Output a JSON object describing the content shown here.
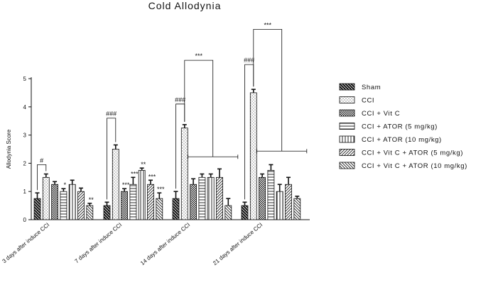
{
  "chart_data": {
    "type": "bar",
    "title": "Cold Allodynia",
    "xlabel": "",
    "ylabel": "Allodynia Score",
    "ylim": [
      0,
      5
    ],
    "yticks": [
      "0",
      "1",
      "2",
      "3",
      "4",
      "5"
    ],
    "categories": [
      "3 days after induce CCI",
      "7 days after induce CCI",
      "14 days after induce CCI",
      "21 days after induce CCI"
    ],
    "series": [
      {
        "name": "Sham",
        "pattern": "sham",
        "values": [
          0.75,
          0.5,
          0.75,
          0.5
        ],
        "errors": [
          0.2,
          0.12,
          0.25,
          0.12
        ]
      },
      {
        "name": "CCI",
        "pattern": "dots",
        "values": [
          1.5,
          2.5,
          3.25,
          4.5
        ],
        "errors": [
          0.12,
          0.15,
          0.12,
          0.12
        ]
      },
      {
        "name": "CCI + Vit C",
        "pattern": "check",
        "values": [
          1.25,
          1.0,
          1.25,
          1.5
        ],
        "errors": [
          0.1,
          0.1,
          0.2,
          0.12
        ]
      },
      {
        "name": "CCI + ATOR (5 mg/kg)",
        "pattern": "hlines",
        "values": [
          1.0,
          1.25,
          1.5,
          1.75
        ],
        "errors": [
          0.1,
          0.25,
          0.12,
          0.2
        ]
      },
      {
        "name": "CCI + ATOR (10 mg/kg)",
        "pattern": "vlines",
        "values": [
          1.25,
          1.75,
          1.5,
          1.0
        ],
        "errors": [
          0.15,
          0.08,
          0.12,
          0.25
        ]
      },
      {
        "name": "CCI + Vit C + ATOR (5 mg/kg)",
        "pattern": "diag",
        "values": [
          1.0,
          1.25,
          1.5,
          1.25
        ],
        "errors": [
          0.12,
          0.15,
          0.3,
          0.25
        ]
      },
      {
        "name": "CCI + Vit C + ATOR (10 mg/kg)",
        "pattern": "rdiag",
        "values": [
          0.5,
          0.75,
          0.5,
          0.75
        ],
        "errors": [
          0.08,
          0.2,
          0.25,
          0.08
        ]
      }
    ],
    "bar_labels": [
      {
        "category": 0,
        "series": 3,
        "text": "*"
      },
      {
        "category": 0,
        "series": 6,
        "text": "**"
      },
      {
        "category": 1,
        "series": 2,
        "text": "***"
      },
      {
        "category": 1,
        "series": 3,
        "text": "***"
      },
      {
        "category": 1,
        "series": 4,
        "text": "**"
      },
      {
        "category": 1,
        "series": 5,
        "text": "***"
      },
      {
        "category": 1,
        "series": 6,
        "text": "***"
      }
    ],
    "brackets": [
      {
        "category": 0,
        "from_series": 0,
        "to_series": 1,
        "level": 1.95,
        "text": "#"
      },
      {
        "category": 1,
        "from_series": 0,
        "to_series": 1,
        "level": 3.6,
        "text": "###"
      },
      {
        "category": 2,
        "from_series": 0,
        "to_series": 1,
        "level": 4.1,
        "text": "###"
      },
      {
        "category": 3,
        "from_series": 0,
        "to_series": 1,
        "level": 5.5,
        "text": "###"
      }
    ],
    "group_comparisons": [
      {
        "category": 2,
        "level": 5.65,
        "span_level": 2.23,
        "text": "***"
      },
      {
        "category": 3,
        "level": 6.75,
        "span_level": 2.43,
        "text": "***"
      }
    ],
    "legend_position": "right"
  }
}
